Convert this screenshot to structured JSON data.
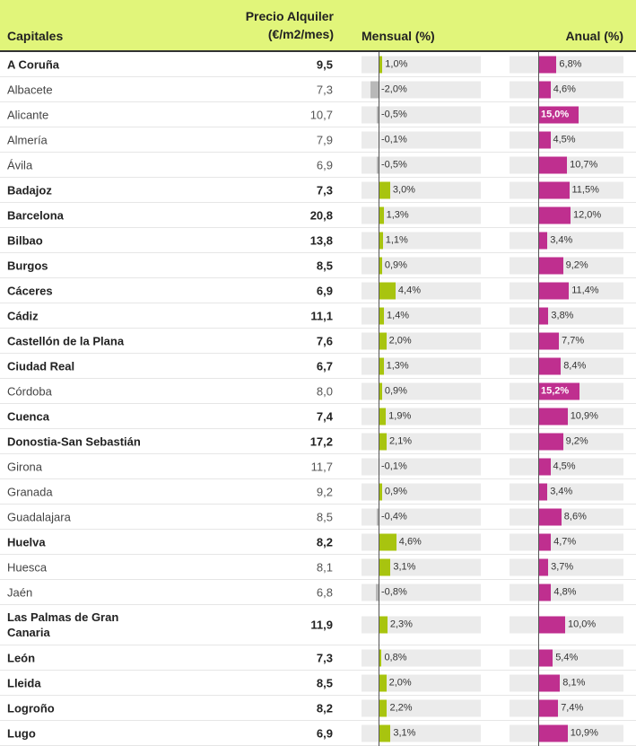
{
  "headers": {
    "city": "Capitales",
    "price_line1": "Precio Alquiler",
    "price_line2": "(€/m2/mes)",
    "monthly": "Mensual (%)",
    "annual": "Anual (%)"
  },
  "colors": {
    "header_bg": "#e1f57a",
    "monthly_pos": "#a8c40f",
    "monthly_neg": "#b8b8b8",
    "annual": "#bf2f8f"
  },
  "rows": [
    {
      "city": "A Coruña",
      "bold": true,
      "price": "9,5",
      "mensual": 1.0,
      "mensual_label": "1,0%",
      "anual": 6.8,
      "anual_label": "6,8%"
    },
    {
      "city": "Albacete",
      "bold": false,
      "price": "7,3",
      "mensual": -2.0,
      "mensual_label": "-2,0%",
      "anual": 4.6,
      "anual_label": "4,6%"
    },
    {
      "city": "Alicante",
      "bold": false,
      "price": "10,7",
      "mensual": -0.5,
      "mensual_label": "-0,5%",
      "anual": 15.0,
      "anual_label": "15,0%"
    },
    {
      "city": "Almería",
      "bold": false,
      "price": "7,9",
      "mensual": -0.1,
      "mensual_label": "-0,1%",
      "anual": 4.5,
      "anual_label": "4,5%"
    },
    {
      "city": "Ávila",
      "bold": false,
      "price": "6,9",
      "mensual": -0.5,
      "mensual_label": "-0,5%",
      "anual": 10.7,
      "anual_label": "10,7%"
    },
    {
      "city": "Badajoz",
      "bold": true,
      "price": "7,3",
      "mensual": 3.0,
      "mensual_label": "3,0%",
      "anual": 11.5,
      "anual_label": "11,5%"
    },
    {
      "city": "Barcelona",
      "bold": true,
      "price": "20,8",
      "mensual": 1.3,
      "mensual_label": "1,3%",
      "anual": 12.0,
      "anual_label": "12,0%"
    },
    {
      "city": "Bilbao",
      "bold": true,
      "price": "13,8",
      "mensual": 1.1,
      "mensual_label": "1,1%",
      "anual": 3.4,
      "anual_label": "3,4%"
    },
    {
      "city": "Burgos",
      "bold": true,
      "price": "8,5",
      "mensual": 0.9,
      "mensual_label": "0,9%",
      "anual": 9.2,
      "anual_label": "9,2%"
    },
    {
      "city": "Cáceres",
      "bold": true,
      "price": "6,9",
      "mensual": 4.4,
      "mensual_label": "4,4%",
      "anual": 11.4,
      "anual_label": "11,4%"
    },
    {
      "city": "Cádiz",
      "bold": true,
      "price": "11,1",
      "mensual": 1.4,
      "mensual_label": "1,4%",
      "anual": 3.8,
      "anual_label": "3,8%"
    },
    {
      "city": "Castellón de la Plana",
      "bold": true,
      "price": "7,6",
      "mensual": 2.0,
      "mensual_label": "2,0%",
      "anual": 7.7,
      "anual_label": "7,7%"
    },
    {
      "city": "Ciudad Real",
      "bold": true,
      "price": "6,7",
      "mensual": 1.3,
      "mensual_label": "1,3%",
      "anual": 8.4,
      "anual_label": "8,4%"
    },
    {
      "city": "Córdoba",
      "bold": false,
      "price": "8,0",
      "mensual": 0.9,
      "mensual_label": "0,9%",
      "anual": 15.2,
      "anual_label": "15,2%"
    },
    {
      "city": "Cuenca",
      "bold": true,
      "price": "7,4",
      "mensual": 1.9,
      "mensual_label": "1,9%",
      "anual": 10.9,
      "anual_label": "10,9%"
    },
    {
      "city": "Donostia-San Sebastián",
      "bold": true,
      "price": "17,2",
      "mensual": 2.1,
      "mensual_label": "2,1%",
      "anual": 9.2,
      "anual_label": "9,2%"
    },
    {
      "city": "Girona",
      "bold": false,
      "price": "11,7",
      "mensual": -0.1,
      "mensual_label": "-0,1%",
      "anual": 4.5,
      "anual_label": "4,5%"
    },
    {
      "city": "Granada",
      "bold": false,
      "price": "9,2",
      "mensual": 0.9,
      "mensual_label": "0,9%",
      "anual": 3.4,
      "anual_label": "3,4%"
    },
    {
      "city": "Guadalajara",
      "bold": false,
      "price": "8,5",
      "mensual": -0.4,
      "mensual_label": "-0,4%",
      "anual": 8.6,
      "anual_label": "8,6%"
    },
    {
      "city": "Huelva",
      "bold": true,
      "price": "8,2",
      "mensual": 4.6,
      "mensual_label": "4,6%",
      "anual": 4.7,
      "anual_label": "4,7%"
    },
    {
      "city": "Huesca",
      "bold": false,
      "price": "8,1",
      "mensual": 3.1,
      "mensual_label": "3,1%",
      "anual": 3.7,
      "anual_label": "3,7%"
    },
    {
      "city": "Jaén",
      "bold": false,
      "price": "6,8",
      "mensual": -0.8,
      "mensual_label": "-0,8%",
      "anual": 4.8,
      "anual_label": "4,8%"
    },
    {
      "city": "Las Palmas de Gran Canaria",
      "bold": true,
      "price": "11,9",
      "mensual": 2.3,
      "mensual_label": "2,3%",
      "anual": 10.0,
      "anual_label": "10,0%",
      "tall": true
    },
    {
      "city": "León",
      "bold": true,
      "price": "7,3",
      "mensual": 0.8,
      "mensual_label": "0,8%",
      "anual": 5.4,
      "anual_label": "5,4%"
    },
    {
      "city": "Lleida",
      "bold": true,
      "price": "8,5",
      "mensual": 2.0,
      "mensual_label": "2,0%",
      "anual": 8.1,
      "anual_label": "8,1%"
    },
    {
      "city": "Logroño",
      "bold": true,
      "price": "8,2",
      "mensual": 2.2,
      "mensual_label": "2,2%",
      "anual": 7.4,
      "anual_label": "7,4%"
    },
    {
      "city": "Lugo",
      "bold": true,
      "price": "6,9",
      "mensual": 3.1,
      "mensual_label": "3,1%",
      "anual": 10.9,
      "anual_label": "10,9%"
    }
  ]
}
